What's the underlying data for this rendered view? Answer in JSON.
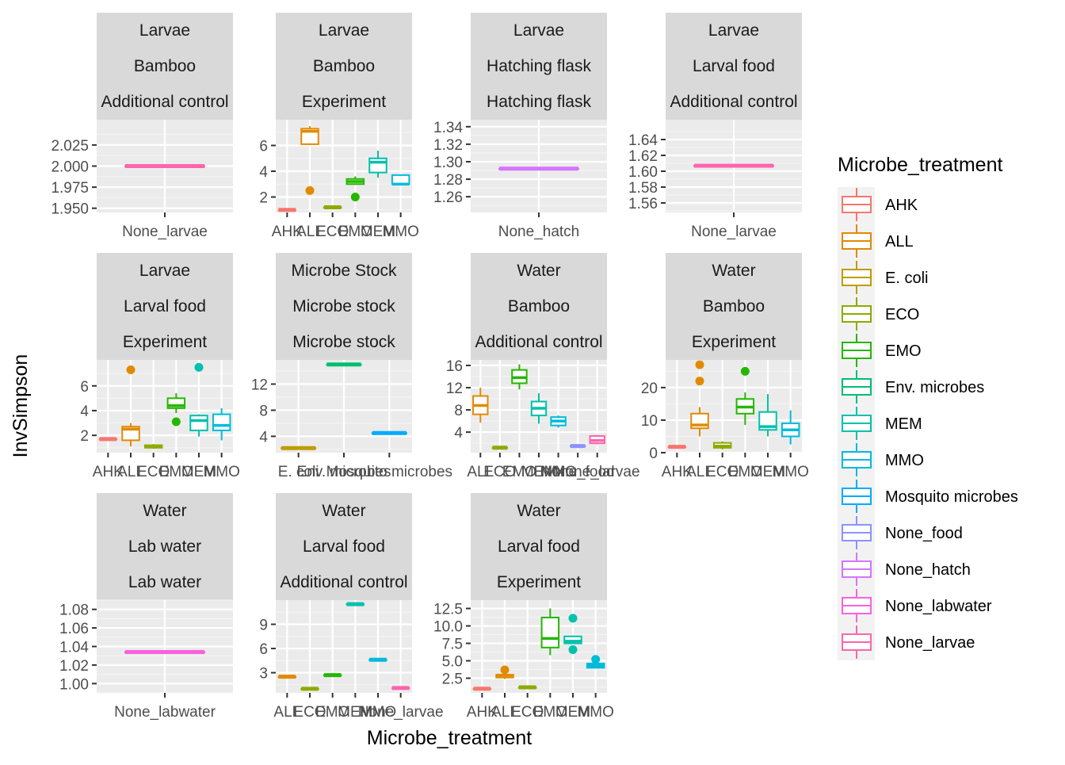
{
  "chart_data": {
    "type": "boxplot",
    "xlabel": "Microbe_treatment",
    "ylabel": "InvSimpson",
    "legend": {
      "title": "Microbe_treatment",
      "position": "right",
      "items": [
        {
          "label": "AHK",
          "color": "#F8766D"
        },
        {
          "label": "ALL",
          "color": "#E18A00"
        },
        {
          "label": "E. coli",
          "color": "#BE9C00"
        },
        {
          "label": "ECO",
          "color": "#8CAB00"
        },
        {
          "label": "EMO",
          "color": "#24B700"
        },
        {
          "label": "Env. microbes",
          "color": "#00BE70"
        },
        {
          "label": "MEM",
          "color": "#00C1AB"
        },
        {
          "label": "MMO",
          "color": "#00BBDA"
        },
        {
          "label": "Mosquito microbes",
          "color": "#00ACFC"
        },
        {
          "label": "None_food",
          "color": "#8B93FF"
        },
        {
          "label": "None_hatch",
          "color": "#D575FE"
        },
        {
          "label": "None_labwater",
          "color": "#F962DD"
        },
        {
          "label": "None_larvae",
          "color": "#FF65AC"
        }
      ]
    },
    "panels": [
      {
        "strip": [
          "Larvae",
          "Bamboo",
          "Additional control"
        ],
        "yrange": [
          1.945,
          2.055
        ],
        "yticks": [
          "1.950",
          "1.975",
          "2.000",
          "2.025"
        ],
        "categories": [
          "None_larvae"
        ],
        "boxes": [
          {
            "cat": "None_larvae",
            "q1": 2.0,
            "med": 2.0,
            "q3": 2.0,
            "lo": 2.0,
            "hi": 2.0,
            "outliers": []
          }
        ]
      },
      {
        "strip": [
          "Larvae",
          "Bamboo",
          "Experiment"
        ],
        "yrange": [
          0.8,
          8.0
        ],
        "yticks": [
          "2",
          "4",
          "6"
        ],
        "categories": [
          "AHK",
          "ALL",
          "ECO",
          "EMO",
          "MEM",
          "MMO"
        ],
        "boxes": [
          {
            "cat": "AHK",
            "q1": 1.0,
            "med": 1.0,
            "q3": 1.0,
            "lo": 1.0,
            "hi": 1.0,
            "outliers": []
          },
          {
            "cat": "ALL",
            "q1": 6.1,
            "med": 7.1,
            "q3": 7.3,
            "lo": 6.1,
            "hi": 7.5,
            "outliers": [
              2.5
            ]
          },
          {
            "cat": "ECO",
            "q1": 1.2,
            "med": 1.2,
            "q3": 1.2,
            "lo": 1.2,
            "hi": 1.2,
            "outliers": []
          },
          {
            "cat": "EMO",
            "q1": 3.0,
            "med": 3.2,
            "q3": 3.4,
            "lo": 3.0,
            "hi": 3.6,
            "outliers": [
              2.0
            ]
          },
          {
            "cat": "MEM",
            "q1": 3.9,
            "med": 4.7,
            "q3": 5.0,
            "lo": 3.5,
            "hi": 5.6,
            "outliers": []
          },
          {
            "cat": "MMO",
            "q1": 3.0,
            "med": 3.0,
            "q3": 3.7,
            "lo": 3.0,
            "hi": 3.7,
            "outliers": []
          }
        ]
      },
      {
        "strip": [
          "Larvae",
          "Hatching flask",
          "Hatching flask"
        ],
        "yrange": [
          1.242,
          1.348
        ],
        "yticks": [
          "1.26",
          "1.28",
          "1.30",
          "1.32",
          "1.34"
        ],
        "categories": [
          "None_hatch"
        ],
        "boxes": [
          {
            "cat": "None_hatch",
            "q1": 1.292,
            "med": 1.292,
            "q3": 1.292,
            "lo": 1.292,
            "hi": 1.292,
            "outliers": []
          }
        ]
      },
      {
        "strip": [
          "Larvae",
          "Larval food",
          "Additional control"
        ],
        "yrange": [
          1.548,
          1.665
        ],
        "yticks": [
          "1.56",
          "1.58",
          "1.60",
          "1.62",
          "1.64"
        ],
        "categories": [
          "None_larvae"
        ],
        "boxes": [
          {
            "cat": "None_larvae",
            "q1": 1.607,
            "med": 1.607,
            "q3": 1.607,
            "lo": 1.607,
            "hi": 1.607,
            "outliers": []
          }
        ]
      },
      {
        "strip": [
          "Larvae",
          "Larval food",
          "Experiment"
        ],
        "yrange": [
          0.6,
          8.1
        ],
        "yticks": [
          "2",
          "4",
          "6"
        ],
        "categories": [
          "AHK",
          "ALL",
          "ECO",
          "EMO",
          "MEM",
          "MMO"
        ],
        "boxes": [
          {
            "cat": "AHK",
            "q1": 1.7,
            "med": 1.7,
            "q3": 1.7,
            "lo": 1.7,
            "hi": 1.7,
            "outliers": []
          },
          {
            "cat": "ALL",
            "q1": 1.6,
            "med": 2.5,
            "q3": 2.7,
            "lo": 1.1,
            "hi": 3.0,
            "outliers": [
              7.3
            ]
          },
          {
            "cat": "ECO",
            "q1": 1.0,
            "med": 1.1,
            "q3": 1.2,
            "lo": 0.9,
            "hi": 1.3,
            "outliers": []
          },
          {
            "cat": "EMO",
            "q1": 4.2,
            "med": 4.4,
            "q3": 5.0,
            "lo": 3.8,
            "hi": 5.4,
            "outliers": [
              3.1
            ]
          },
          {
            "cat": "MEM",
            "q1": 2.4,
            "med": 3.2,
            "q3": 3.6,
            "lo": 1.9,
            "hi": 3.7,
            "outliers": [
              7.5
            ]
          },
          {
            "cat": "MMO",
            "q1": 2.4,
            "med": 2.8,
            "q3": 3.7,
            "lo": 1.6,
            "hi": 4.2,
            "outliers": []
          }
        ]
      },
      {
        "strip": [
          "Microbe Stock",
          "Microbe stock",
          "Microbe stock"
        ],
        "yrange": [
          1.5,
          15.7
        ],
        "yticks": [
          "4",
          "8",
          "12"
        ],
        "categories": [
          "E. coli",
          "Env. microbes",
          "Mosquito microbes"
        ],
        "boxes": [
          {
            "cat": "E. coli",
            "q1": 2.2,
            "med": 2.2,
            "q3": 2.2,
            "lo": 2.2,
            "hi": 2.2,
            "outliers": []
          },
          {
            "cat": "Env. microbes",
            "q1": 15.0,
            "med": 15.0,
            "q3": 15.0,
            "lo": 15.0,
            "hi": 15.0,
            "outliers": []
          },
          {
            "cat": "Mosquito microbes",
            "q1": 4.5,
            "med": 4.5,
            "q3": 4.5,
            "lo": 4.5,
            "hi": 4.5,
            "outliers": []
          }
        ]
      },
      {
        "strip": [
          "Water",
          "Bamboo",
          "Additional control"
        ],
        "yrange": [
          0.3,
          17.0
        ],
        "yticks": [
          "4",
          "8",
          "12",
          "16"
        ],
        "categories": [
          "ALL",
          "ECO",
          "EMO",
          "MEM",
          "MMO",
          "None_food",
          "None_larvae"
        ],
        "boxes": [
          {
            "cat": "ALL",
            "q1": 7.2,
            "med": 8.8,
            "q3": 10.5,
            "lo": 5.7,
            "hi": 12.0,
            "outliers": []
          },
          {
            "cat": "ECO",
            "q1": 1.2,
            "med": 1.2,
            "q3": 1.2,
            "lo": 1.2,
            "hi": 1.2,
            "outliers": []
          },
          {
            "cat": "EMO",
            "q1": 12.8,
            "med": 13.8,
            "q3": 15.2,
            "lo": 11.7,
            "hi": 16.2,
            "outliers": []
          },
          {
            "cat": "MEM",
            "q1": 7.0,
            "med": 8.3,
            "q3": 9.5,
            "lo": 5.5,
            "hi": 11.0,
            "outliers": []
          },
          {
            "cat": "MMO",
            "q1": 5.2,
            "med": 6.0,
            "q3": 6.7,
            "lo": 4.8,
            "hi": 7.0,
            "outliers": []
          },
          {
            "cat": "None_food",
            "q1": 1.5,
            "med": 1.5,
            "q3": 1.5,
            "lo": 1.5,
            "hi": 1.5,
            "outliers": []
          },
          {
            "cat": "None_larvae",
            "q1": 2.0,
            "med": 2.5,
            "q3": 3.3,
            "lo": 1.8,
            "hi": 3.5,
            "outliers": []
          }
        ]
      },
      {
        "strip": [
          "Water",
          "Bamboo",
          "Experiment"
        ],
        "yrange": [
          0,
          28.5
        ],
        "yticks": [
          "0",
          "10",
          "20"
        ],
        "categories": [
          "AHK",
          "ALL",
          "ECO",
          "EMO",
          "MEM",
          "MMO"
        ],
        "boxes": [
          {
            "cat": "AHK",
            "q1": 1.8,
            "med": 1.8,
            "q3": 1.8,
            "lo": 1.8,
            "hi": 1.8,
            "outliers": []
          },
          {
            "cat": "ALL",
            "q1": 7.5,
            "med": 8.5,
            "q3": 12.0,
            "lo": 5.0,
            "hi": 14.0,
            "outliers": [
              22.0,
              27.0
            ]
          },
          {
            "cat": "ECO",
            "q1": 1.5,
            "med": 2.0,
            "q3": 3.0,
            "lo": 1.0,
            "hi": 3.5,
            "outliers": []
          },
          {
            "cat": "EMO",
            "q1": 12.0,
            "med": 14.0,
            "q3": 16.5,
            "lo": 8.5,
            "hi": 18.5,
            "outliers": [
              25.0
            ]
          },
          {
            "cat": "MEM",
            "q1": 7.0,
            "med": 8.0,
            "q3": 12.5,
            "lo": 5.0,
            "hi": 18.0,
            "outliers": []
          },
          {
            "cat": "MMO",
            "q1": 5.0,
            "med": 7.0,
            "q3": 9.0,
            "lo": 2.5,
            "hi": 13.0,
            "outliers": []
          }
        ]
      },
      {
        "strip": [
          "Water",
          "Lab water",
          "Lab water"
        ],
        "yrange": [
          0.99,
          1.09
        ],
        "yticks": [
          "1.00",
          "1.02",
          "1.04",
          "1.06",
          "1.08"
        ],
        "categories": [
          "None_labwater"
        ],
        "boxes": [
          {
            "cat": "None_labwater",
            "q1": 1.034,
            "med": 1.034,
            "q3": 1.034,
            "lo": 1.034,
            "hi": 1.034,
            "outliers": []
          }
        ]
      },
      {
        "strip": [
          "Water",
          "Larval food",
          "Additional control"
        ],
        "yrange": [
          0.5,
          12.0
        ],
        "yticks": [
          "3",
          "6",
          "9"
        ],
        "categories": [
          "ALL",
          "ECO",
          "EMO",
          "MEM",
          "MMO",
          "None_larvae"
        ],
        "boxes": [
          {
            "cat": "ALL",
            "q1": 2.5,
            "med": 2.5,
            "q3": 2.5,
            "lo": 2.5,
            "hi": 2.5,
            "outliers": []
          },
          {
            "cat": "ECO",
            "q1": 1.0,
            "med": 1.0,
            "q3": 1.0,
            "lo": 1.0,
            "hi": 1.0,
            "outliers": []
          },
          {
            "cat": "EMO",
            "q1": 2.7,
            "med": 2.7,
            "q3": 2.7,
            "lo": 2.7,
            "hi": 2.7,
            "outliers": []
          },
          {
            "cat": "MEM",
            "q1": 11.5,
            "med": 11.5,
            "q3": 11.5,
            "lo": 11.5,
            "hi": 11.5,
            "outliers": []
          },
          {
            "cat": "MMO",
            "q1": 4.6,
            "med": 4.6,
            "q3": 4.6,
            "lo": 4.6,
            "hi": 4.6,
            "outliers": []
          },
          {
            "cat": "None_larvae",
            "q1": 1.1,
            "med": 1.1,
            "q3": 1.1,
            "lo": 1.1,
            "hi": 1.1,
            "outliers": []
          }
        ]
      },
      {
        "strip": [
          "Water",
          "Larval food",
          "Experiment"
        ],
        "yrange": [
          0.4,
          13.7
        ],
        "yticks": [
          "2.5",
          "5.0",
          "7.5",
          "10.0",
          "12.5"
        ],
        "categories": [
          "AHK",
          "ALL",
          "ECO",
          "EMO",
          "MEM",
          "MMO"
        ],
        "boxes": [
          {
            "cat": "AHK",
            "q1": 1.0,
            "med": 1.0,
            "q3": 1.0,
            "lo": 1.0,
            "hi": 1.0,
            "outliers": []
          },
          {
            "cat": "ALL",
            "q1": 2.6,
            "med": 2.9,
            "q3": 3.0,
            "lo": 2.4,
            "hi": 3.2,
            "outliers": [
              3.7
            ]
          },
          {
            "cat": "ECO",
            "q1": 1.1,
            "med": 1.2,
            "q3": 1.2,
            "lo": 1.1,
            "hi": 1.2,
            "outliers": []
          },
          {
            "cat": "EMO",
            "q1": 6.9,
            "med": 8.2,
            "q3": 11.2,
            "lo": 5.8,
            "hi": 12.5,
            "outliers": []
          },
          {
            "cat": "MEM",
            "q1": 7.5,
            "med": 7.8,
            "q3": 8.5,
            "lo": 7.5,
            "hi": 8.5,
            "outliers": [
              11.1,
              6.6
            ]
          },
          {
            "cat": "MMO",
            "q1": 4.0,
            "med": 4.3,
            "q3": 4.6,
            "lo": 4.0,
            "hi": 4.6,
            "outliers": [
              5.2
            ]
          }
        ]
      }
    ]
  }
}
